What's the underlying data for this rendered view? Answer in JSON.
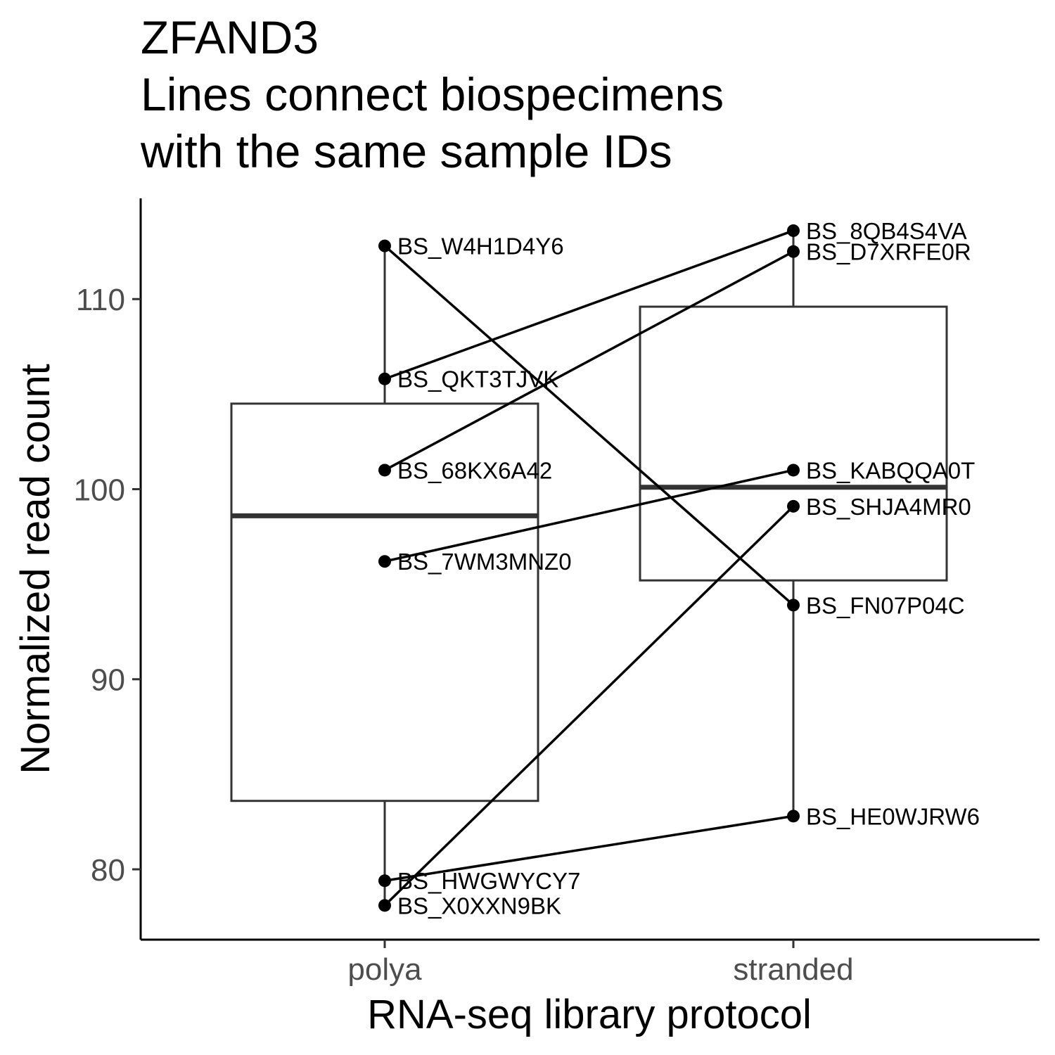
{
  "chart_data": {
    "type": "box",
    "title": [
      "ZFAND3",
      "Lines connect biospecimens",
      "with the same sample IDs"
    ],
    "xlabel": "RNA-seq library protocol",
    "ylabel": "Normalized read count",
    "categories": [
      "polya",
      "stranded"
    ],
    "ylim": [
      76.3,
      115.3
    ],
    "yticks": [
      80,
      90,
      100,
      110
    ],
    "grid": false,
    "boxes": [
      {
        "category": "polya",
        "whisker_low": 78.0,
        "q1": 83.6,
        "median": 98.6,
        "q3": 104.5,
        "whisker_high": 112.8
      },
      {
        "category": "stranded",
        "whisker_low": 82.8,
        "q1": 95.2,
        "median": 100.1,
        "q3": 109.6,
        "whisker_high": 113.6
      }
    ],
    "points": [
      {
        "label": "BS_W4H1D4Y6",
        "category": "polya",
        "y": 112.8
      },
      {
        "label": "BS_QKT3TJVK",
        "category": "polya",
        "y": 105.8
      },
      {
        "label": "BS_68KX6A42",
        "category": "polya",
        "y": 101.0
      },
      {
        "label": "BS_7WM3MNZ0",
        "category": "polya",
        "y": 96.2
      },
      {
        "label": "BS_HWGWYCY7",
        "category": "polya",
        "y": 79.4
      },
      {
        "label": "BS_X0XXN9BK",
        "category": "polya",
        "y": 78.1
      },
      {
        "label": "BS_8QB4S4VA",
        "category": "stranded",
        "y": 113.6
      },
      {
        "label": "BS_D7XRFE0R",
        "category": "stranded",
        "y": 112.5
      },
      {
        "label": "BS_KABQQA0T",
        "category": "stranded",
        "y": 101.0
      },
      {
        "label": "BS_SHJA4MR0",
        "category": "stranded",
        "y": 99.1
      },
      {
        "label": "BS_FN07P04C",
        "category": "stranded",
        "y": 93.9
      },
      {
        "label": "BS_HE0WJRW6",
        "category": "stranded",
        "y": 82.8
      }
    ],
    "pairs": [
      [
        "BS_W4H1D4Y6",
        "BS_FN07P04C"
      ],
      [
        "BS_QKT3TJVK",
        "BS_8QB4S4VA"
      ],
      [
        "BS_68KX6A42",
        "BS_D7XRFE0R"
      ],
      [
        "BS_7WM3MNZ0",
        "BS_KABQQA0T"
      ],
      [
        "BS_HWGWYCY7",
        "BS_HE0WJRW6"
      ],
      [
        "BS_X0XXN9BK",
        "BS_SHJA4MR0"
      ]
    ]
  }
}
